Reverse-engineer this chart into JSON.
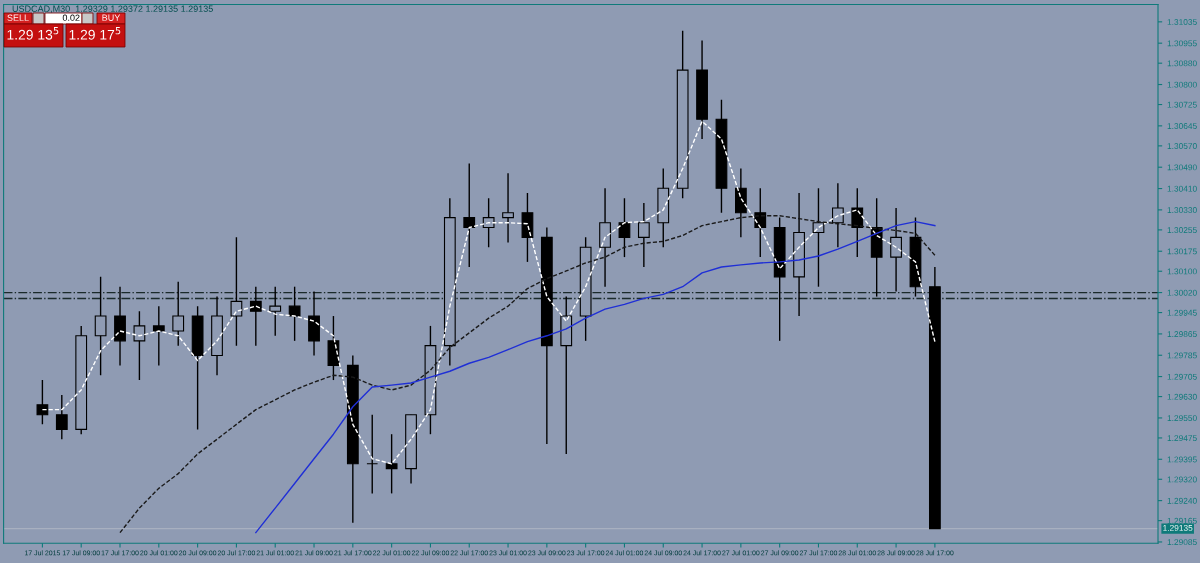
{
  "chart_data": {
    "type": "candlestick",
    "annotations": [
      "USDCAD,M30  1.29329 1.29372 1.29135 1.29135",
      "SELL",
      "0.02",
      "BUY",
      "1.29 13$^{5}$",
      "1.29 17$^{5}$"
    ],
    "categories": [
      "17 Jul 2015",
      null,
      "17 Jul 09:00",
      null,
      "17 Jul 17:00",
      null,
      "20 Jul 01:00",
      null,
      "20 Jul 09:00",
      null,
      "20 Jul 17:00",
      null,
      "21 Jul 01:00",
      null,
      "21 Jul 09:00",
      null,
      "21 Jul 17:00",
      null,
      "22 Jul 01:00",
      null,
      "22 Jul 09:00",
      null,
      "22 Jul 17:00",
      null,
      "23 Jul 01:00",
      null,
      "23 Jul 09:00",
      null,
      "23 Jul 17:00",
      null,
      "24 Jul 01:00",
      null,
      "24 Jul 09:00",
      null,
      "24 Jul 17:00",
      null,
      "27 Jul 01:00",
      null,
      "27 Jul 09:00",
      null,
      "27 Jul 17:00",
      null,
      "28 Jul 01:00",
      null,
      "28 Jul 09:00",
      null,
      "28 Jul 17:00"
    ],
    "ylim": [
      1.2908,
      1.311
    ],
    "yticks": [
      {
        "value": 1.31035,
        "label": "1.31035"
      },
      {
        "value": 1.30955,
        "label": "1.30955"
      },
      {
        "value": 1.3088,
        "label": "1.30880"
      },
      {
        "value": 1.308,
        "label": "1.30800"
      },
      {
        "value": 1.30725,
        "label": "1.30725"
      },
      {
        "value": 1.30645,
        "label": "1.30645"
      },
      {
        "value": 1.3057,
        "label": "1.30570"
      },
      {
        "value": 1.3049,
        "label": "1.30490"
      },
      {
        "value": 1.3041,
        "label": "1.30410"
      },
      {
        "value": 1.3033,
        "label": "1.30330"
      },
      {
        "value": 1.30255,
        "label": "1.30255"
      },
      {
        "value": 1.30175,
        "label": "1.30175"
      },
      {
        "value": 1.301,
        "label": "1.30100"
      },
      {
        "value": 1.3002,
        "label": "1.30020"
      },
      {
        "value": 1.29945,
        "label": "1.29945"
      },
      {
        "value": 1.29865,
        "label": "1.29865"
      },
      {
        "value": 1.29785,
        "label": "1.29785"
      },
      {
        "value": 1.29705,
        "label": "1.29705"
      },
      {
        "value": 1.2963,
        "label": "1.29630"
      },
      {
        "value": 1.2955,
        "label": "1.29550"
      },
      {
        "value": 1.29475,
        "label": "1.29475"
      },
      {
        "value": 1.29395,
        "label": "1.29395"
      },
      {
        "value": 1.2932,
        "label": "1.29320"
      },
      {
        "value": 1.2924,
        "label": "1.29240"
      },
      {
        "value": 1.29165,
        "label": "1.29165"
      },
      {
        "value": 1.29085,
        "label": "1.29085"
      }
    ],
    "ref_lines": [
      {
        "axis": "y",
        "value": 1.3002,
        "color": "#1a2a2a",
        "line_style": "dashdot"
      },
      {
        "axis": "y",
        "value": 1.29998,
        "color": "#1a2a2a",
        "line_style": "dashdot"
      },
      {
        "axis": "y",
        "value": 1.29135,
        "color": "#a8b0c0",
        "line_style": "solid",
        "label": "1.29135"
      }
    ],
    "series": [
      {
        "color": "#000000",
        "ohlc": [
          [
            1.29599,
            1.29692,
            1.29526,
            1.29562
          ],
          [
            1.29562,
            1.29636,
            1.2947,
            1.29507
          ],
          [
            1.29507,
            1.29895,
            1.29489,
            1.29858
          ],
          [
            1.29858,
            1.30079,
            1.2971,
            1.29932
          ],
          [
            1.29932,
            1.30042,
            1.29747,
            1.29839
          ],
          [
            1.29839,
            1.2995,
            1.29692,
            1.29895
          ],
          [
            1.29895,
            1.29969,
            1.29747,
            1.29876
          ],
          [
            1.29876,
            1.30061,
            1.29821,
            1.29932
          ],
          [
            1.29932,
            1.29969,
            1.29507,
            1.29784
          ],
          [
            1.29784,
            1.30005,
            1.2971,
            1.29932
          ],
          [
            1.29932,
            1.30227,
            1.29821,
            1.29987
          ],
          [
            1.29987,
            1.30042,
            1.29821,
            1.2995
          ],
          [
            1.2995,
            1.30042,
            1.29858,
            1.29969
          ],
          [
            1.29969,
            1.30042,
            1.29839,
            1.29932
          ],
          [
            1.29932,
            1.30024,
            1.29784,
            1.29839
          ],
          [
            1.29839,
            1.29932,
            1.29692,
            1.29747
          ],
          [
            1.29747,
            1.29784,
            1.29157,
            1.29378
          ],
          [
            1.29378,
            1.29562,
            1.29267,
            1.29378
          ],
          [
            1.29378,
            1.29489,
            1.29267,
            1.2936
          ],
          [
            1.2936,
            1.29562,
            1.29304,
            1.29562
          ],
          [
            1.29562,
            1.29895,
            1.29489,
            1.29821
          ],
          [
            1.29821,
            1.30374,
            1.29747,
            1.30301
          ],
          [
            1.30301,
            1.30504,
            1.30116,
            1.30264
          ],
          [
            1.30264,
            1.30374,
            1.3019,
            1.30301
          ],
          [
            1.30301,
            1.30467,
            1.30208,
            1.30319
          ],
          [
            1.30319,
            1.30393,
            1.30135,
            1.30227
          ],
          [
            1.30227,
            1.30264,
            1.29452,
            1.29821
          ],
          [
            1.29821,
            1.30005,
            1.29415,
            1.29932
          ],
          [
            1.29932,
            1.30227,
            1.29839,
            1.3019
          ],
          [
            1.3019,
            1.30411,
            1.30042,
            1.30282
          ],
          [
            1.30282,
            1.30374,
            1.30153,
            1.30227
          ],
          [
            1.30227,
            1.30356,
            1.30116,
            1.30282
          ],
          [
            1.30282,
            1.30485,
            1.3019,
            1.30411
          ],
          [
            1.30411,
            1.31002,
            1.30374,
            1.30854
          ],
          [
            1.30854,
            1.30965,
            1.30596,
            1.3067
          ],
          [
            1.3067,
            1.30743,
            1.30319,
            1.30411
          ],
          [
            1.30411,
            1.30485,
            1.30227,
            1.30319
          ],
          [
            1.30319,
            1.30411,
            1.30153,
            1.30264
          ],
          [
            1.30264,
            1.30301,
            1.29839,
            1.30079
          ],
          [
            1.30079,
            1.30393,
            1.29932,
            1.30245
          ],
          [
            1.30245,
            1.30411,
            1.30042,
            1.30282
          ],
          [
            1.30282,
            1.3043,
            1.3019,
            1.30337
          ],
          [
            1.30337,
            1.30411,
            1.30153,
            1.30264
          ],
          [
            1.30264,
            1.30374,
            1.30005,
            1.30153
          ],
          [
            1.30153,
            1.30337,
            1.30024,
            1.30227
          ],
          [
            1.30227,
            1.30301,
            1.30005,
            1.30042
          ],
          [
            1.30042,
            1.30116,
            1.29135,
            1.29135
          ]
        ]
      },
      {
        "type": "line",
        "color": "#ffffff",
        "line_style": "dashed",
        "values": [
          1.29581,
          1.29581,
          1.29655,
          1.29802,
          1.29876,
          1.29858,
          1.29876,
          1.29858,
          1.29765,
          1.29839,
          1.2995,
          1.29969,
          1.29939,
          1.29932,
          1.29913,
          1.29858,
          1.29526,
          1.29397,
          1.29378,
          1.2947,
          1.29581,
          1.29969,
          1.30264,
          1.30282,
          1.30282,
          1.30278,
          1.30005,
          1.29913,
          1.30042,
          1.30227,
          1.30282,
          1.30286,
          1.3033,
          1.30485,
          1.30662,
          1.30596,
          1.30374,
          1.30264,
          1.30109,
          1.3019,
          1.30264,
          1.30308,
          1.3033,
          1.30234,
          1.3019,
          1.30135,
          1.29836
        ]
      },
      {
        "type": "line",
        "color": "#1a1a1a",
        "line_style": "dashed",
        "values": [
          null,
          null,
          null,
          null,
          1.2912,
          1.29212,
          1.29286,
          1.29341,
          1.29415,
          1.2947,
          1.29526,
          1.29581,
          1.29618,
          1.29655,
          1.29684,
          1.2971,
          1.29703,
          1.29673,
          1.29655,
          1.29673,
          1.29729,
          1.29814,
          1.29869,
          1.29924,
          1.29969,
          1.30035,
          1.30072,
          1.30101,
          1.30131,
          1.30153,
          1.3019,
          1.30205,
          1.30212,
          1.30234,
          1.30271,
          1.30286,
          1.30301,
          1.30308,
          1.30308,
          1.30297,
          1.30286,
          1.30278,
          1.30271,
          1.3026,
          1.30253,
          1.30242,
          1.3016
        ]
      },
      {
        "type": "line",
        "color": "#1f2fd6",
        "line_style": "solid",
        "values": [
          null,
          null,
          null,
          null,
          null,
          null,
          null,
          null,
          null,
          null,
          null,
          1.2912,
          1.29212,
          1.29304,
          1.29397,
          1.29489,
          1.29592,
          1.29666,
          1.29673,
          1.29681,
          1.29703,
          1.29725,
          1.29755,
          1.29777,
          1.29806,
          1.29836,
          1.29858,
          1.29884,
          1.29924,
          1.29958,
          1.29976,
          1.29998,
          1.30013,
          1.30042,
          1.30094,
          1.30116,
          1.30124,
          1.30131,
          1.30135,
          1.30142,
          1.30157,
          1.30183,
          1.30212,
          1.30242,
          1.30271,
          1.30286,
          1.30271
        ]
      }
    ]
  }
}
